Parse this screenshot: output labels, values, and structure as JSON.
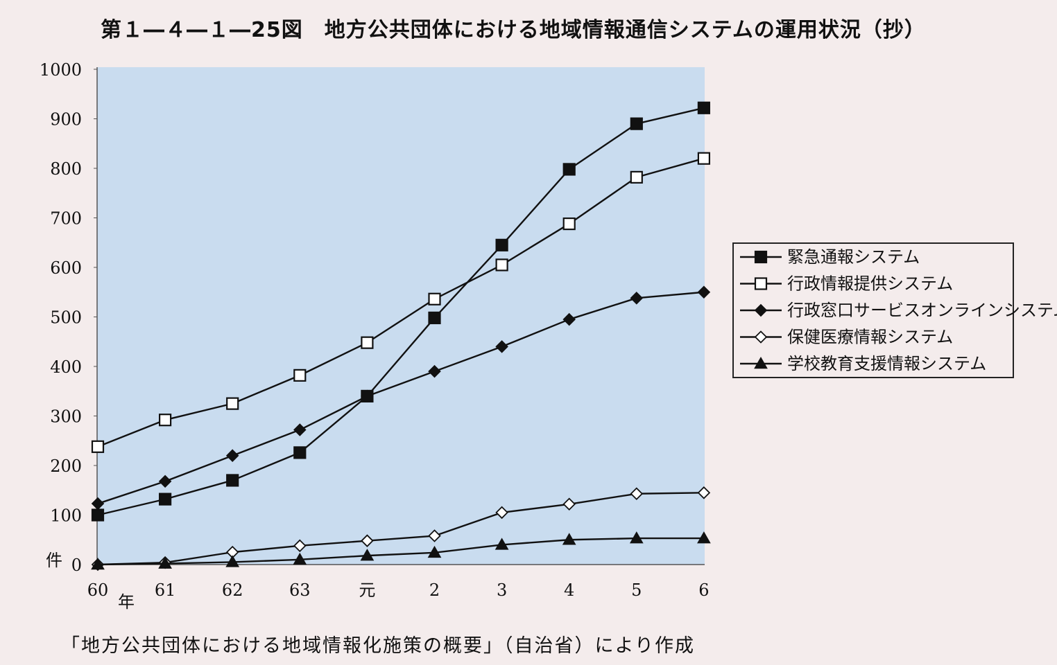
{
  "title": "第１―４―１―25図　地方公共団体における地域情報通信システムの運用状況（抄）",
  "source": "「地方公共団体における地域情報化施策の概要」（自治省）により作成",
  "colors": {
    "plot_bg": "#c9dcef",
    "page_bg": "#f4ecec",
    "line": "#111111"
  },
  "chart_data": {
    "type": "line",
    "title": "第１―４―１―25図　地方公共団体における地域情報通信システムの運用状況（抄）",
    "xlabel": "年",
    "ylabel": "件",
    "categories": [
      "60",
      "61",
      "62",
      "63",
      "元",
      "2",
      "3",
      "4",
      "5",
      "6"
    ],
    "ylim": [
      0,
      1000
    ],
    "yticks": [
      0,
      100,
      200,
      300,
      400,
      500,
      600,
      700,
      800,
      900,
      1000
    ],
    "grid": false,
    "legend": "right",
    "series": [
      {
        "name": "緊急通報システム",
        "marker": "filled-square",
        "values": [
          100,
          132,
          170,
          226,
          340,
          498,
          645,
          798,
          890,
          922
        ]
      },
      {
        "name": "行政情報提供システム",
        "marker": "open-square",
        "values": [
          238,
          292,
          325,
          382,
          448,
          536,
          605,
          688,
          782,
          820
        ]
      },
      {
        "name": "行政窓口サービスオンラインシステム",
        "marker": "filled-diamond",
        "values": [
          123,
          168,
          220,
          272,
          340,
          390,
          440,
          495,
          538,
          550
        ]
      },
      {
        "name": "保健医療情報システム",
        "marker": "open-diamond",
        "values": [
          0,
          4,
          25,
          38,
          48,
          58,
          105,
          122,
          143,
          145
        ]
      },
      {
        "name": "学校教育支援情報システム",
        "marker": "filled-triangle",
        "values": [
          0,
          2,
          5,
          10,
          18,
          24,
          40,
          50,
          53,
          53
        ]
      }
    ]
  }
}
